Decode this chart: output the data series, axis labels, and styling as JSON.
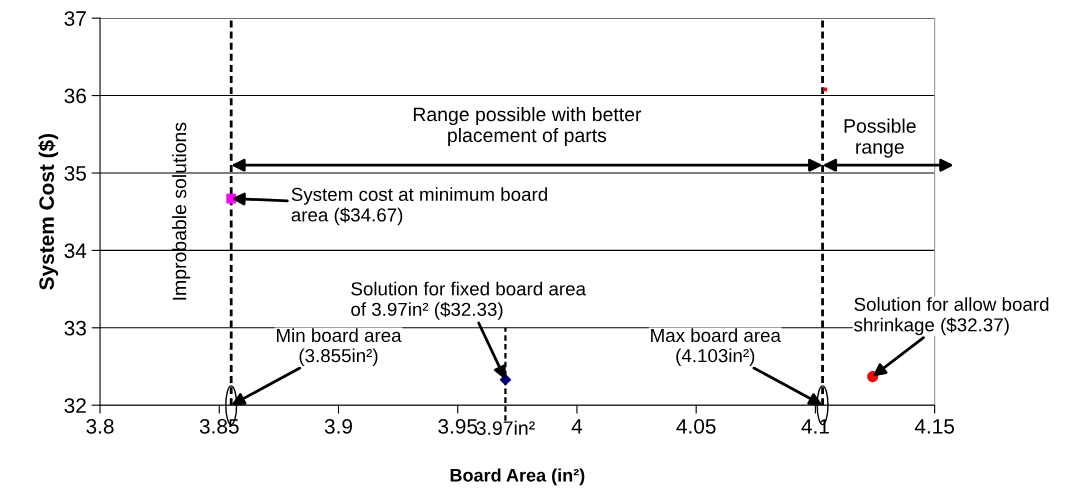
{
  "chart_data": {
    "type": "scatter",
    "xlabel": "Board Area (in²)",
    "ylabel": "System Cost ($)",
    "xlim": [
      3.8,
      4.15
    ],
    "ylim": [
      32,
      37
    ],
    "xticks": [
      3.8,
      3.85,
      3.9,
      3.95,
      4,
      4.05,
      4.1,
      4.15
    ],
    "yticks": [
      32,
      33,
      34,
      35,
      36,
      37
    ],
    "grid": "y",
    "legend": false,
    "series": [
      {
        "color": "#ff00ff",
        "marker": "square",
        "x": [
          3.855
        ],
        "values": [
          34.67
        ]
      },
      {
        "color": "#000080",
        "marker": "diamond",
        "x": [
          3.97
        ],
        "values": [
          32.33
        ]
      },
      {
        "color": "#ff0000",
        "marker": "circle",
        "x": [
          4.124
        ],
        "values": [
          32.37
        ]
      },
      {
        "color": "#ff0000",
        "marker": "square",
        "x": [
          4.104
        ],
        "values": [
          36.08
        ]
      }
    ],
    "ref_lines": [
      {
        "axis": "x",
        "value": 3.855,
        "color": "#000000",
        "line_style": "dashed"
      },
      {
        "axis": "x",
        "value": 4.103,
        "color": "#000000",
        "line_style": "dashed"
      },
      {
        "axis": "x",
        "value": 3.97,
        "label": "3.97in²",
        "color": "#000000",
        "line_style": "dashed"
      }
    ],
    "annotations": [
      "Improbable solutions",
      "Range possible with better\nplacement of parts",
      "Possible\nrange",
      {
        "text": "System cost at minimum board\narea ($34.67)",
        "x": 3.855,
        "y": 34.67
      },
      {
        "text": "Solution for fixed board area\nof 3.97in² ($32.33)",
        "x": 3.97,
        "y": 32.33
      },
      {
        "text": "Min board area\n(3.855in²)",
        "x": 3.855,
        "y": 32
      },
      {
        "text": "Max board area\n(4.103in²)",
        "x": 4.103,
        "y": 32
      },
      {
        "text": "Solution for allow board\nshrinkage ($32.37)",
        "x": 4.124,
        "y": 32.37
      }
    ]
  }
}
